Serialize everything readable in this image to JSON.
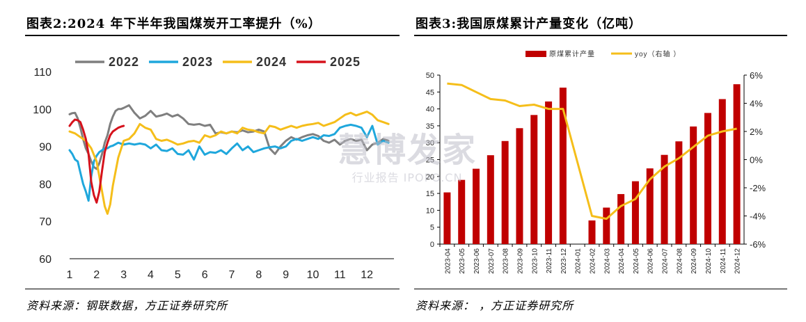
{
  "left": {
    "title": "图表2:2024 年下半年我国煤炭开工率提升（%）",
    "source": "资料来源：钢联数据，方正证券研究所"
  },
  "right": {
    "title": "图表3:我国原煤累计产量变化（亿吨）",
    "source": "资料来源：      ，方正证券研究所"
  },
  "watermark": {
    "main": "慧博发家",
    "sub": "行业报告 IPOPO.CN"
  },
  "colors": {
    "y2022": "#7f7f7f",
    "y2023": "#1fa7dc",
    "y2024": "#f5be1a",
    "y2025": "#d6121c",
    "bar": "#c00000",
    "yoy": "#f5be1a"
  },
  "chart_data": [
    {
      "type": "line",
      "title": "图表2:2024 年下半年我国煤炭开工率提升（%）",
      "xlabel": "",
      "ylabel": "",
      "xlim": [
        1,
        13
      ],
      "ylim": [
        60,
        110
      ],
      "xticks": [
        1,
        2,
        3,
        4,
        5,
        6,
        7,
        8,
        9,
        10,
        11,
        12
      ],
      "yticks": [
        60,
        70,
        80,
        90,
        100,
        110
      ],
      "legend_position": "top",
      "series": [
        {
          "name": "2022",
          "color": "#7f7f7f",
          "x": [
            1.0,
            1.1,
            1.2,
            1.3,
            1.4,
            1.5,
            1.6,
            1.7,
            1.8,
            1.9,
            2.0,
            2.1,
            2.2,
            2.3,
            2.4,
            2.5,
            2.6,
            2.7,
            2.8,
            2.9,
            3.0,
            3.2,
            3.4,
            3.6,
            3.8,
            4.0,
            4.2,
            4.4,
            4.6,
            4.8,
            5.0,
            5.2,
            5.4,
            5.6,
            5.8,
            6.0,
            6.2,
            6.4,
            6.6,
            6.8,
            7.0,
            7.2,
            7.4,
            7.6,
            7.8,
            8.0,
            8.2,
            8.4,
            8.6,
            8.8,
            9.0,
            9.2,
            9.4,
            9.6,
            9.8,
            10.0,
            10.2,
            10.4,
            10.6,
            10.8,
            11.0,
            11.2,
            11.4,
            11.6,
            11.8,
            12.0,
            12.2,
            12.4,
            12.6,
            12.8
          ],
          "values": [
            98.6,
            98.9,
            99.0,
            97.5,
            95.0,
            92.0,
            89.5,
            88.0,
            86.0,
            84.5,
            84.0,
            85.5,
            88.0,
            91.0,
            93.0,
            96.0,
            98.0,
            99.5,
            100.0,
            100.0,
            100.3,
            101.0,
            99.0,
            97.5,
            98.2,
            99.5,
            98.0,
            98.3,
            98.8,
            98.0,
            98.5,
            97.5,
            96.0,
            95.8,
            96.0,
            95.5,
            95.8,
            93.5,
            93.8,
            93.5,
            94.0,
            93.8,
            94.3,
            93.8,
            94.0,
            94.5,
            94.0,
            89.5,
            88.0,
            90.0,
            91.5,
            92.5,
            91.8,
            92.5,
            93.0,
            93.3,
            92.8,
            91.5,
            91.0,
            91.8,
            90.5,
            91.5,
            92.0,
            91.5,
            91.8,
            89.0,
            90.5,
            91.0,
            92.0,
            91.5
          ]
        },
        {
          "name": "2023",
          "color": "#1fa7dc",
          "x": [
            1.0,
            1.1,
            1.2,
            1.3,
            1.4,
            1.5,
            1.6,
            1.7,
            1.8,
            1.9,
            2.0,
            2.1,
            2.2,
            2.3,
            2.4,
            2.5,
            2.6,
            2.8,
            3.0,
            3.2,
            3.4,
            3.6,
            3.8,
            4.0,
            4.2,
            4.4,
            4.6,
            4.8,
            5.0,
            5.2,
            5.4,
            5.6,
            5.8,
            6.0,
            6.2,
            6.4,
            6.6,
            6.8,
            7.0,
            7.2,
            7.4,
            7.6,
            7.8,
            8.0,
            8.2,
            8.4,
            8.6,
            8.8,
            9.0,
            9.2,
            9.4,
            9.6,
            9.8,
            10.0,
            10.2,
            10.4,
            10.6,
            10.8,
            11.0,
            11.2,
            11.4,
            11.6,
            11.8,
            12.0,
            12.2,
            12.4,
            12.6,
            12.8
          ],
          "values": [
            89.0,
            88.0,
            86.5,
            86.0,
            83.0,
            80.0,
            78.0,
            75.5,
            82.0,
            86.0,
            87.5,
            88.5,
            89.0,
            89.5,
            89.5,
            90.0,
            90.2,
            91.0,
            90.5,
            90.8,
            90.5,
            90.8,
            90.5,
            89.5,
            90.5,
            89.0,
            88.8,
            89.5,
            88.0,
            87.8,
            89.0,
            86.5,
            90.0,
            87.8,
            88.5,
            88.3,
            89.0,
            88.0,
            89.5,
            90.8,
            89.0,
            90.0,
            88.5,
            89.0,
            89.5,
            89.8,
            90.0,
            89.5,
            90.0,
            91.5,
            92.0,
            91.5,
            92.0,
            92.5,
            92.0,
            93.0,
            92.8,
            93.3,
            95.0,
            95.5,
            95.8,
            95.5,
            95.0,
            92.5,
            95.5,
            90.5,
            91.5,
            91.0
          ]
        },
        {
          "name": "2024",
          "color": "#f5be1a",
          "x": [
            1.0,
            1.2,
            1.4,
            1.6,
            1.8,
            2.0,
            2.2,
            2.3,
            2.4,
            2.5,
            2.6,
            2.8,
            3.0,
            3.2,
            3.4,
            3.6,
            3.8,
            4.0,
            4.2,
            4.4,
            4.6,
            4.8,
            5.0,
            5.2,
            5.4,
            5.6,
            5.8,
            6.0,
            6.2,
            6.4,
            6.6,
            6.8,
            7.0,
            7.2,
            7.4,
            7.6,
            7.8,
            8.0,
            8.2,
            8.4,
            8.6,
            8.8,
            9.0,
            9.2,
            9.4,
            9.6,
            9.8,
            10.0,
            10.2,
            10.4,
            10.6,
            10.8,
            11.0,
            11.2,
            11.4,
            11.6,
            11.8,
            12.0,
            12.2,
            12.4,
            12.6,
            12.8
          ],
          "values": [
            94.0,
            93.5,
            92.5,
            91.5,
            89.5,
            86.0,
            78.0,
            74.0,
            72.0,
            74.5,
            79.5,
            87.0,
            91.5,
            92.0,
            93.5,
            96.0,
            95.0,
            94.5,
            92.0,
            91.5,
            91.8,
            91.2,
            90.5,
            90.8,
            91.3,
            91.5,
            91.0,
            93.0,
            92.5,
            93.0,
            94.0,
            93.5,
            94.0,
            93.5,
            95.0,
            94.5,
            94.3,
            93.8,
            93.5,
            95.5,
            95.2,
            94.5,
            95.0,
            95.5,
            95.0,
            95.5,
            95.8,
            96.0,
            96.3,
            95.5,
            96.0,
            96.5,
            97.5,
            98.5,
            99.0,
            98.3,
            98.8,
            99.3,
            98.5,
            97.0,
            96.5,
            96.0
          ]
        },
        {
          "name": "2025",
          "color": "#d6121c",
          "x": [
            1.0,
            1.1,
            1.2,
            1.3,
            1.4,
            1.5,
            1.6,
            1.7,
            1.8,
            1.9,
            2.0,
            2.1,
            2.2,
            2.3,
            2.4,
            2.5,
            2.6,
            2.7,
            2.8,
            2.9,
            3.0
          ],
          "values": [
            95.5,
            96.5,
            97.2,
            97.0,
            96.5,
            94.5,
            92.0,
            88.0,
            80.5,
            77.0,
            75.0,
            78.0,
            83.5,
            88.5,
            91.0,
            93.0,
            94.0,
            94.5,
            95.0,
            95.3,
            95.5
          ]
        }
      ]
    },
    {
      "type": "bar",
      "title": "图表3:我国原煤累计产量变化（亿吨）",
      "categories": [
        "2023-04",
        "2023-05",
        "2023-06",
        "2023-07",
        "2023-08",
        "2023-09",
        "2023-10",
        "2023-11",
        "2023-12",
        "2024-01",
        "2024-02",
        "2024-03",
        "2024-04",
        "2024-05",
        "2024-06",
        "2024-07",
        "2024-08",
        "2024-09",
        "2024-10",
        "2024-11",
        "2024-12"
      ],
      "ylim_left": [
        0,
        50
      ],
      "yticks_left": [
        0,
        5,
        10,
        15,
        20,
        25,
        30,
        35,
        40,
        45,
        50
      ],
      "ylim_right": [
        -6,
        6
      ],
      "yticks_right": [
        "-6%",
        "-4%",
        "-2%",
        "0%",
        "2%",
        "4%",
        "6%"
      ],
      "legend_position": "top",
      "series": [
        {
          "name": "原煤累计产量",
          "axis": "left",
          "kind": "bar",
          "color": "#c00000",
          "values": [
            15.3,
            19.0,
            22.3,
            26.3,
            30.5,
            34.3,
            38.2,
            42.2,
            46.3,
            null,
            7.0,
            10.8,
            14.8,
            18.6,
            22.4,
            26.4,
            30.4,
            34.8,
            38.8,
            42.9,
            47.3
          ]
        },
        {
          "name": "yoy（右轴 ）",
          "axis": "right",
          "kind": "line",
          "color": "#f5be1a",
          "values": [
            5.4,
            5.3,
            4.8,
            4.3,
            4.2,
            3.8,
            3.9,
            3.6,
            3.6,
            null,
            -4.0,
            -4.2,
            -3.3,
            -2.8,
            -1.4,
            -0.5,
            0.1,
            0.9,
            1.7,
            2.0,
            2.2
          ]
        }
      ]
    }
  ]
}
